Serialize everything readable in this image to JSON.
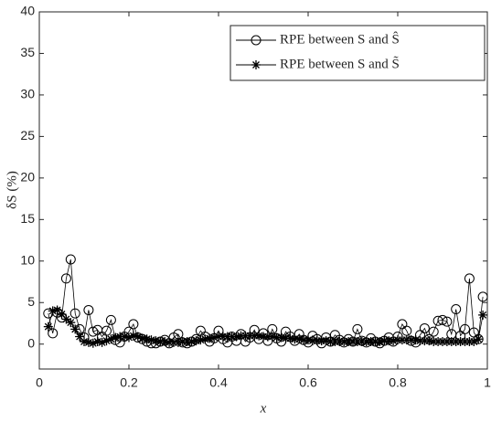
{
  "chart_data": {
    "type": "line",
    "x_label": "x",
    "y_label": "δS (%)",
    "x": [
      0.02,
      0.03,
      0.04,
      0.05,
      0.06,
      0.07,
      0.08,
      0.09,
      0.1,
      0.11,
      0.12,
      0.13,
      0.14,
      0.15,
      0.16,
      0.17,
      0.18,
      0.19,
      0.2,
      0.21,
      0.22,
      0.23,
      0.24,
      0.25,
      0.26,
      0.27,
      0.28,
      0.29,
      0.3,
      0.31,
      0.32,
      0.33,
      0.34,
      0.35,
      0.36,
      0.37,
      0.38,
      0.39,
      0.4,
      0.41,
      0.42,
      0.43,
      0.44,
      0.45,
      0.46,
      0.47,
      0.48,
      0.49,
      0.5,
      0.51,
      0.52,
      0.53,
      0.54,
      0.55,
      0.56,
      0.57,
      0.58,
      0.59,
      0.6,
      0.61,
      0.62,
      0.63,
      0.64,
      0.65,
      0.66,
      0.67,
      0.68,
      0.69,
      0.7,
      0.71,
      0.72,
      0.73,
      0.74,
      0.75,
      0.76,
      0.77,
      0.78,
      0.79,
      0.8,
      0.81,
      0.82,
      0.83,
      0.84,
      0.85,
      0.86,
      0.87,
      0.88,
      0.89,
      0.9,
      0.91,
      0.92,
      0.93,
      0.94,
      0.95,
      0.96,
      0.97,
      0.98,
      0.99
    ],
    "series": [
      {
        "name": "RPE between S and Ŝ",
        "color": "#000000",
        "marker": "circle",
        "values": [
          3.7,
          1.3,
          3.8,
          3.2,
          7.9,
          10.2,
          3.7,
          1.8,
          0.8,
          4.1,
          1.5,
          1.7,
          0.9,
          1.6,
          2.9,
          0.5,
          0.2,
          0.9,
          1.5,
          2.4,
          0.8,
          0.6,
          0.3,
          0.1,
          0.1,
          0.3,
          0.5,
          0.1,
          0.8,
          1.2,
          0.2,
          0.1,
          0.3,
          0.6,
          1.6,
          0.9,
          0.3,
          0.7,
          1.6,
          0.6,
          0.2,
          0.9,
          0.4,
          1.2,
          0.3,
          0.8,
          1.7,
          0.6,
          1.3,
          0.4,
          1.8,
          0.7,
          0.3,
          1.5,
          0.9,
          0.4,
          1.2,
          0.5,
          0.2,
          1.0,
          0.6,
          0.1,
          0.8,
          0.3,
          1.1,
          0.5,
          0.2,
          0.6,
          0.3,
          1.8,
          0.4,
          0.2,
          0.7,
          0.3,
          0.1,
          0.4,
          0.8,
          0.3,
          0.9,
          2.4,
          1.6,
          0.4,
          0.2,
          1.1,
          1.9,
          0.6,
          1.5,
          2.8,
          2.9,
          2.7,
          1.2,
          4.2,
          1.0,
          1.8,
          7.9,
          1.4,
          0.6,
          5.7
        ]
      },
      {
        "name": "RPE between S and S̃",
        "color": "#000000",
        "marker": "star",
        "values": [
          2.1,
          4.0,
          4.1,
          3.6,
          3.0,
          2.6,
          1.8,
          0.9,
          0.3,
          0.2,
          0.1,
          0.3,
          0.2,
          0.4,
          0.6,
          0.8,
          0.9,
          0.9,
          0.8,
          1.0,
          0.9,
          0.7,
          0.6,
          0.5,
          0.4,
          0.3,
          0.3,
          0.2,
          0.2,
          0.2,
          0.3,
          0.3,
          0.3,
          0.4,
          0.5,
          0.6,
          0.7,
          0.8,
          0.9,
          0.9,
          0.9,
          0.9,
          0.9,
          1.0,
          1.0,
          1.0,
          1.0,
          1.0,
          0.9,
          0.9,
          0.9,
          0.8,
          0.8,
          0.7,
          0.7,
          0.6,
          0.6,
          0.5,
          0.5,
          0.4,
          0.4,
          0.4,
          0.4,
          0.3,
          0.3,
          0.3,
          0.3,
          0.3,
          0.3,
          0.3,
          0.3,
          0.3,
          0.3,
          0.3,
          0.3,
          0.4,
          0.4,
          0.4,
          0.5,
          0.5,
          0.5,
          0.5,
          0.5,
          0.4,
          0.4,
          0.4,
          0.3,
          0.3,
          0.3,
          0.3,
          0.3,
          0.3,
          0.3,
          0.3,
          0.3,
          0.3,
          0.6,
          3.5
        ]
      }
    ],
    "xlim": [
      0,
      1
    ],
    "xticks": [
      0,
      0.2,
      0.4,
      0.6,
      0.8,
      1
    ],
    "ylim": [
      -3,
      40
    ],
    "yticks": [
      0,
      5,
      10,
      15,
      20,
      25,
      30,
      35,
      40
    ],
    "grid": false,
    "legend": "upper right"
  }
}
